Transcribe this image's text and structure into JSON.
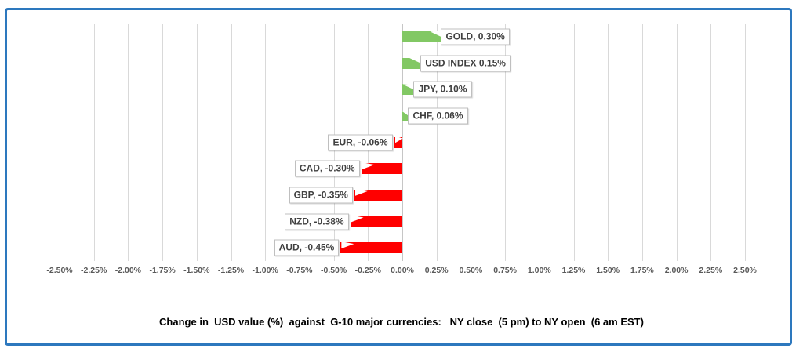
{
  "frame": {
    "border_color": "#2D78BE",
    "background_color": "#FFFFFF"
  },
  "chart_data": {
    "type": "bar",
    "orientation": "horizontal",
    "title": "Change in  USD value (%)  against  G-10 major currencies:   NY close  (5 pm) to NY open  (6 am EST)",
    "categories": [
      "GOLD",
      "USD INDEX",
      "JPY",
      "CHF",
      "EUR",
      "CAD",
      "GBP",
      "NZD",
      "AUD"
    ],
    "values": [
      0.3,
      0.15,
      0.1,
      0.06,
      -0.06,
      -0.3,
      -0.35,
      -0.38,
      -0.45
    ],
    "data_labels": [
      "GOLD, 0.30%",
      "USD INDEX 0.15%",
      "JPY, 0.10%",
      "CHF, 0.06%",
      "EUR, -0.06%",
      "CAD, -0.30%",
      "GBP, -0.35%",
      "NZD, -0.38%",
      "AUD, -0.45%"
    ],
    "xlim": [
      -2.5,
      2.5
    ],
    "tick_step": 0.25,
    "x_tick_labels": [
      "-2.50%",
      "-2.25%",
      "-2.00%",
      "-1.75%",
      "-1.50%",
      "-1.25%",
      "-1.00%",
      "-0.75%",
      "-0.50%",
      "-0.25%",
      "0.00%",
      "0.25%",
      "0.50%",
      "0.75%",
      "1.00%",
      "1.25%",
      "1.50%",
      "1.75%",
      "2.00%",
      "2.25%",
      "2.50%"
    ],
    "grid": true,
    "legend": "none",
    "positive_color": "#82C864",
    "negative_color": "#FF0000",
    "gridline_color": "#D9D9D9",
    "axis_zero_color": "#C6C6C6",
    "tick_text_color": "#595959",
    "label_text_color": "#404040"
  }
}
